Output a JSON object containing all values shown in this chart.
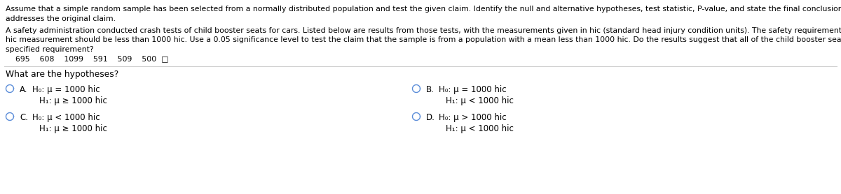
{
  "bg_color": "#ffffff",
  "text_color": "#000000",
  "radio_color": "#5B8DD9",
  "para1": "Assume that a simple random sample has been selected from a normally distributed population and test the given claim. Identify the null and alternative hypotheses, test statistic, P-value, and state the final conclusion that",
  "para1b": "addresses the original claim.",
  "para2": "A safety administration conducted crash tests of child booster seats for cars. Listed below are results from those tests, with the measurements given in hic (standard head injury condition units). The safety requirement is that the",
  "para2b": "hic measurement should be less than 1000 hic. Use a 0.05 significance level to test the claim that the sample is from a population with a mean less than 1000 hic. Do the results suggest that all of the child booster seats meet th",
  "para2c": "specified requirement?",
  "data_row": "    695    608    1099    591    509    500  □",
  "question": "What are the hypotheses?",
  "optA_label": "A.",
  "optA_h0": "H₀: μ = 1000 hic",
  "optA_h1": "H₁: μ ≥ 1000 hic",
  "optB_label": "B.",
  "optB_h0": "H₀: μ = 1000 hic",
  "optB_h1": "H₁: μ < 1000 hic",
  "optC_label": "C.",
  "optC_h0": "H₀: μ < 1000 hic",
  "optC_h1": "H₁: μ ≥ 1000 hic",
  "optD_label": "D.",
  "optD_h0": "H₀: μ > 1000 hic",
  "optD_h1": "H₁: μ < 1000 hic",
  "font_size_body": 7.8,
  "font_size_option": 8.5,
  "font_size_question": 8.8,
  "fig_width": 12.0,
  "fig_height": 2.78,
  "dpi": 100
}
